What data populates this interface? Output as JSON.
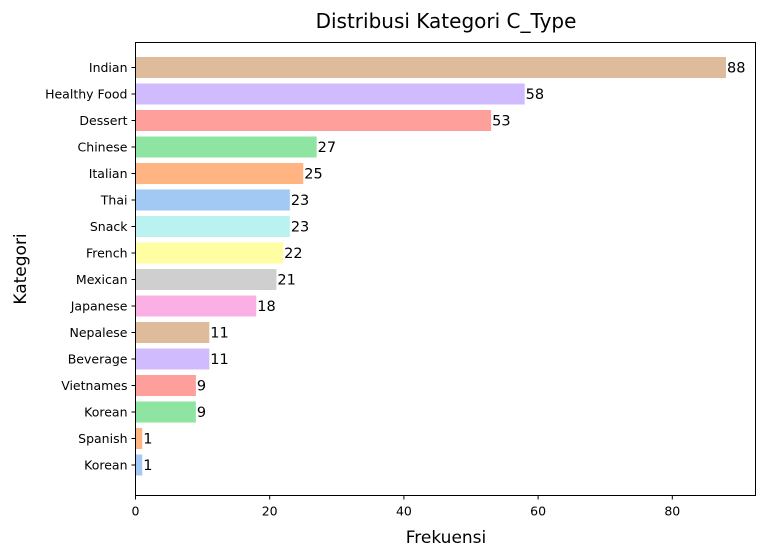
{
  "chart_data": {
    "type": "bar",
    "orientation": "horizontal",
    "title": "Distribusi Kategori C_Type",
    "xlabel": "Frekuensi",
    "ylabel": "Kategori",
    "xlim": [
      0,
      92.4
    ],
    "xticks": [
      0,
      20,
      40,
      60,
      80
    ],
    "grid": false,
    "categories": [
      "Indian",
      "Healthy Food",
      "Dessert",
      "Chinese",
      "Italian",
      "Thai",
      "Snack",
      "French",
      "Mexican",
      "Japanese",
      "Nepalese",
      "Beverage",
      "Vietnames",
      "Korean",
      "Spanish",
      "Korean"
    ],
    "values": [
      88,
      58,
      53,
      27,
      25,
      23,
      23,
      22,
      21,
      18,
      11,
      11,
      9,
      9,
      1,
      1
    ],
    "colors": [
      "#debb9b",
      "#d0bbff",
      "#ff9f9b",
      "#8de5a1",
      "#ffb482",
      "#a1c9f4",
      "#b9f2f0",
      "#fffea3",
      "#cfcfcf",
      "#fab0e4",
      "#debb9b",
      "#d0bbff",
      "#ff9f9b",
      "#8de5a1",
      "#ffb482",
      "#a1c9f4"
    ]
  }
}
